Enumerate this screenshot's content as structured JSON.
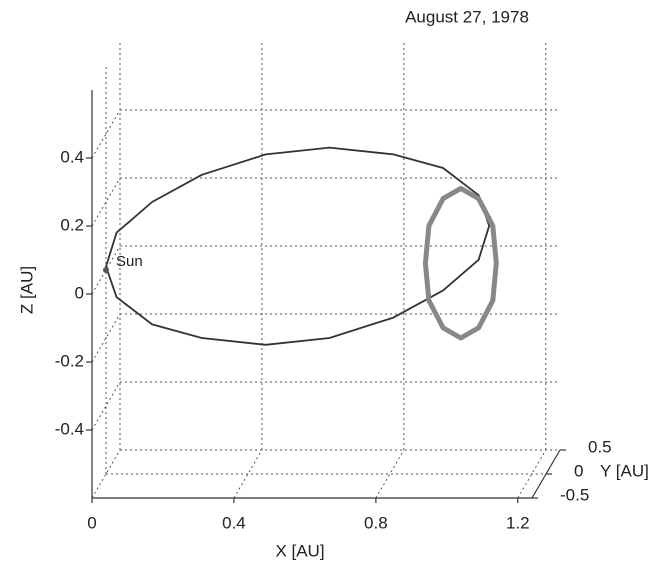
{
  "chart_data": {
    "type": "line3d",
    "title": "August 27, 1978",
    "xlabel": "X [AU]",
    "ylabel": "Y [AU]",
    "zlabel": "Z [AU]",
    "xlim": [
      0,
      1.24
    ],
    "ylim": [
      -0.5,
      0.5
    ],
    "zlim": [
      -0.6,
      0.6
    ],
    "xticks": [
      0,
      0.4,
      0.8,
      1.2
    ],
    "yticks": [
      -0.5,
      0,
      0.5
    ],
    "zticks": [
      -0.4,
      -0.2,
      0,
      0.2,
      0.4
    ],
    "grid": true,
    "annotations": [
      {
        "text": "Sun",
        "x": 0,
        "y": 0,
        "z": 0
      }
    ],
    "series": [
      {
        "color": "#333333",
        "x": [
          0,
          0.03,
          0.13,
          0.27,
          0.45,
          0.63,
          0.81,
          0.95,
          1.05,
          1.08,
          1.05,
          0.95,
          0.81,
          0.63,
          0.45,
          0.27,
          0.13,
          0.03
        ],
        "y": [
          0,
          0,
          0,
          0,
          0,
          0,
          0,
          0,
          0,
          0,
          0,
          0,
          0,
          0,
          0,
          0,
          0,
          0
        ],
        "z": [
          0.01,
          0.11,
          0.2,
          0.28,
          0.34,
          0.36,
          0.34,
          0.3,
          0.22,
          0.13,
          0.03,
          -0.06,
          -0.14,
          -0.2,
          -0.22,
          -0.2,
          -0.16,
          -0.08
        ]
      },
      {
        "color": "#888888",
        "x": [
          1.1,
          1.09,
          1.05,
          1.0,
          0.95,
          0.91,
          0.9,
          0.91,
          0.95,
          1.0,
          1.05,
          1.09
        ],
        "y": [
          0,
          0,
          0,
          0,
          0,
          0,
          0,
          0,
          0,
          0,
          0,
          0
        ],
        "z": [
          0.02,
          0.13,
          0.21,
          0.24,
          0.21,
          0.13,
          0.02,
          -0.09,
          -0.17,
          -0.2,
          -0.17,
          -0.09
        ]
      }
    ]
  }
}
